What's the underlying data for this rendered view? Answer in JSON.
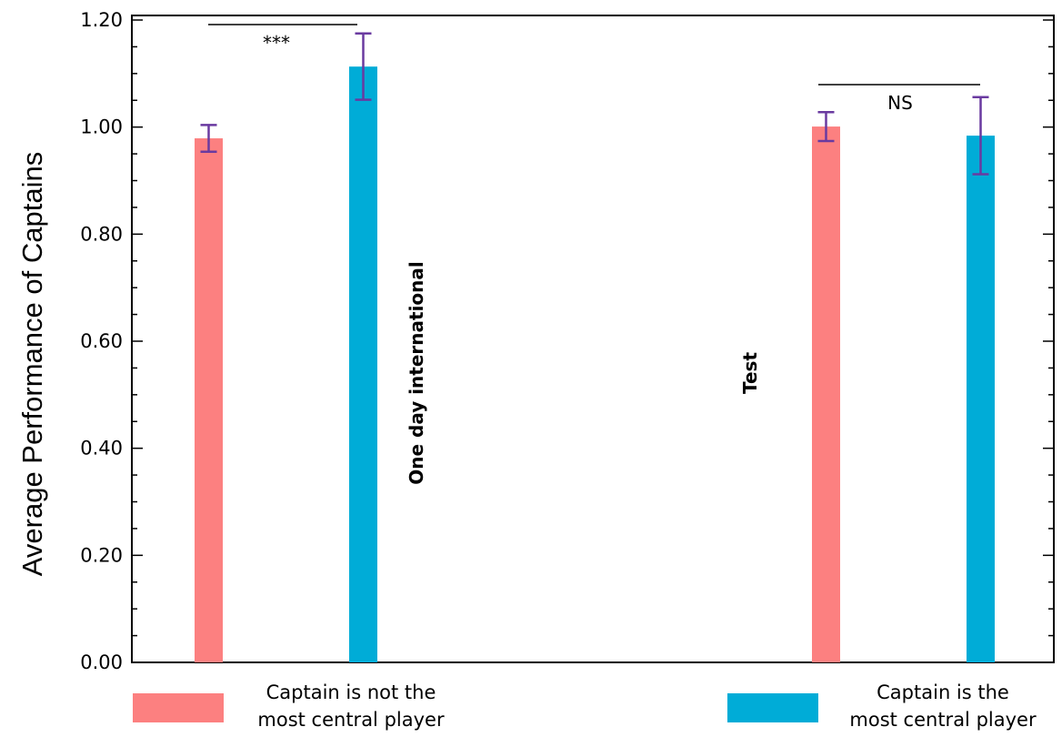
{
  "chart_data": {
    "type": "bar",
    "ylabel": "Average Performance of Captains",
    "ylim": [
      0,
      1.2
    ],
    "yticks": [
      "0.00",
      "0.20",
      "0.40",
      "0.60",
      "0.80",
      "1.00",
      "1.20"
    ],
    "ytick_values": [
      0,
      0.2,
      0.4,
      0.6,
      0.8,
      1.0,
      1.2
    ],
    "groups": [
      {
        "label": "One day international",
        "values": [
          0.979,
          1.113
        ],
        "errors": [
          0.025,
          0.062
        ],
        "significance": "***"
      },
      {
        "label": "Test",
        "values": [
          1.001,
          0.984
        ],
        "errors": [
          0.027,
          0.072
        ],
        "significance": "NS"
      }
    ],
    "series": [
      {
        "name_lines": [
          "Captain is not the",
          "most central player"
        ],
        "color": "#fc8080"
      },
      {
        "name_lines": [
          "Captain is the",
          "most central player"
        ],
        "color": "#00acd7"
      }
    ],
    "errorbar_color": "#6a3aa0",
    "grid": false,
    "legend_position": "bottom"
  }
}
